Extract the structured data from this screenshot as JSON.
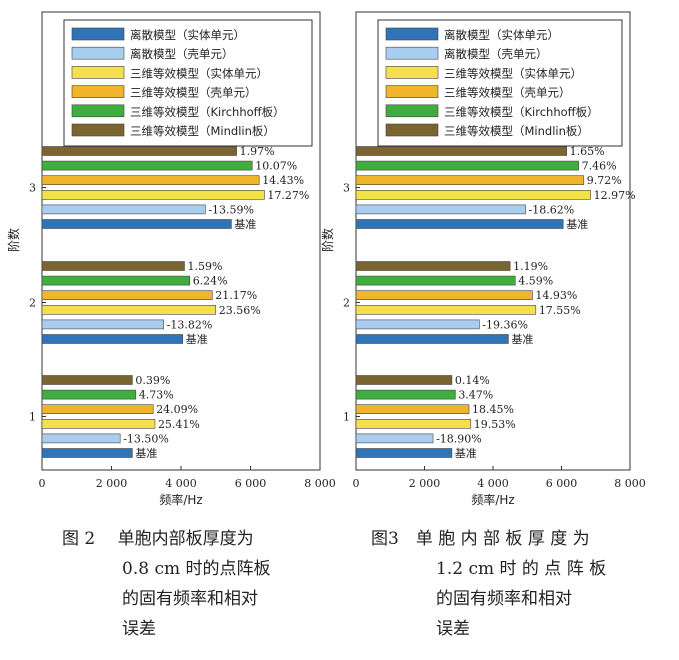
{
  "colors": {
    "discrete_solid": "#2e74b6",
    "discrete_shell": "#a9cdef",
    "equiv_solid": "#f4e04a",
    "equiv_shell": "#f0b52a",
    "equiv_kirchhoff": "#3fae3f",
    "equiv_mindlin": "#7a6430"
  },
  "chart_data": [
    {
      "type": "bar",
      "orientation": "horizontal",
      "xlabel": "频率/Hz",
      "ylabel": "阶数",
      "xlim": [
        0,
        8000
      ],
      "xticks": [
        0,
        2000,
        4000,
        6000,
        8000
      ],
      "xtick_labels": [
        "0",
        "2 000",
        "4 000",
        "6 000",
        "8 000"
      ],
      "categories": [
        "1",
        "2",
        "3"
      ],
      "legend_position": "top",
      "series": [
        {
          "name": "离散模型（实体单元）",
          "color_key": "discrete_solid",
          "values": [
            2600,
            4050,
            5450
          ],
          "labels": [
            "基准",
            "基准",
            "基准"
          ]
        },
        {
          "name": "离散模型（壳单元）",
          "color_key": "discrete_shell",
          "values": [
            2250,
            3500,
            4700
          ],
          "labels": [
            "-13.50%",
            "-13.82%",
            "-13.59%"
          ]
        },
        {
          "name": "三维等效模型（实体单元）",
          "color_key": "equiv_solid",
          "values": [
            3250,
            5000,
            6400
          ],
          "labels": [
            "25.41%",
            "23.56%",
            "17.27%"
          ]
        },
        {
          "name": "三维等效模型（壳单元）",
          "color_key": "equiv_shell",
          "values": [
            3200,
            4900,
            6250
          ],
          "labels": [
            "24.09%",
            "21.17%",
            "14.43%"
          ]
        },
        {
          "name": "三维等效模型（Kirchhoff板）",
          "color_key": "equiv_kirchhoff",
          "values": [
            2700,
            4250,
            6050
          ],
          "labels": [
            "4.73%",
            "6.24%",
            "10.07%"
          ]
        },
        {
          "name": "三维等效模型（Mindlin板）",
          "color_key": "equiv_mindlin",
          "values": [
            2600,
            4100,
            5600
          ],
          "labels": [
            "0.39%",
            "1.59%",
            "1.97%"
          ]
        }
      ]
    },
    {
      "type": "bar",
      "orientation": "horizontal",
      "xlabel": "频率/Hz",
      "ylabel": "阶数",
      "xlim": [
        0,
        8000
      ],
      "xticks": [
        0,
        2000,
        4000,
        6000,
        8000
      ],
      "xtick_labels": [
        "0",
        "2 000",
        "4 000",
        "6 000",
        "8 000"
      ],
      "categories": [
        "1",
        "2",
        "3"
      ],
      "legend_position": "top",
      "series": [
        {
          "name": "离散模型（实体单元）",
          "color_key": "discrete_solid",
          "values": [
            2800,
            4450,
            6050
          ],
          "labels": [
            "基准",
            "基准",
            "基准"
          ]
        },
        {
          "name": "离散模型（壳单元）",
          "color_key": "discrete_shell",
          "values": [
            2250,
            3600,
            4950
          ],
          "labels": [
            "-18.90%",
            "-19.36%",
            "-18.62%"
          ]
        },
        {
          "name": "三维等效模型（实体单元）",
          "color_key": "equiv_solid",
          "values": [
            3350,
            5250,
            6850
          ],
          "labels": [
            "19.53%",
            "17.55%",
            "12.97%"
          ]
        },
        {
          "name": "三维等效模型（壳单元）",
          "color_key": "equiv_shell",
          "values": [
            3300,
            5150,
            6650
          ],
          "labels": [
            "18.45%",
            "14.93%",
            "9.72%"
          ]
        },
        {
          "name": "三维等效模型（Kirchhoff板）",
          "color_key": "equiv_kirchhoff",
          "values": [
            2900,
            4650,
            6500
          ],
          "labels": [
            "3.47%",
            "4.59%",
            "7.46%"
          ]
        },
        {
          "name": "三维等效模型（Mindlin板）",
          "color_key": "equiv_mindlin",
          "values": [
            2800,
            4500,
            6150
          ],
          "labels": [
            "0.14%",
            "1.19%",
            "1.65%"
          ]
        }
      ]
    }
  ],
  "captions": [
    {
      "lines": [
        "图 2　 单胞内部板厚度为",
        "0.8 cm 时的点阵板",
        "的固有频率和相对",
        "误差"
      ]
    },
    {
      "lines": [
        "图3　单 胞 内 部 板 厚 度 为",
        "1.2 cm 时 的 点 阵 板",
        "的固有频率和相对",
        "误差"
      ]
    }
  ]
}
